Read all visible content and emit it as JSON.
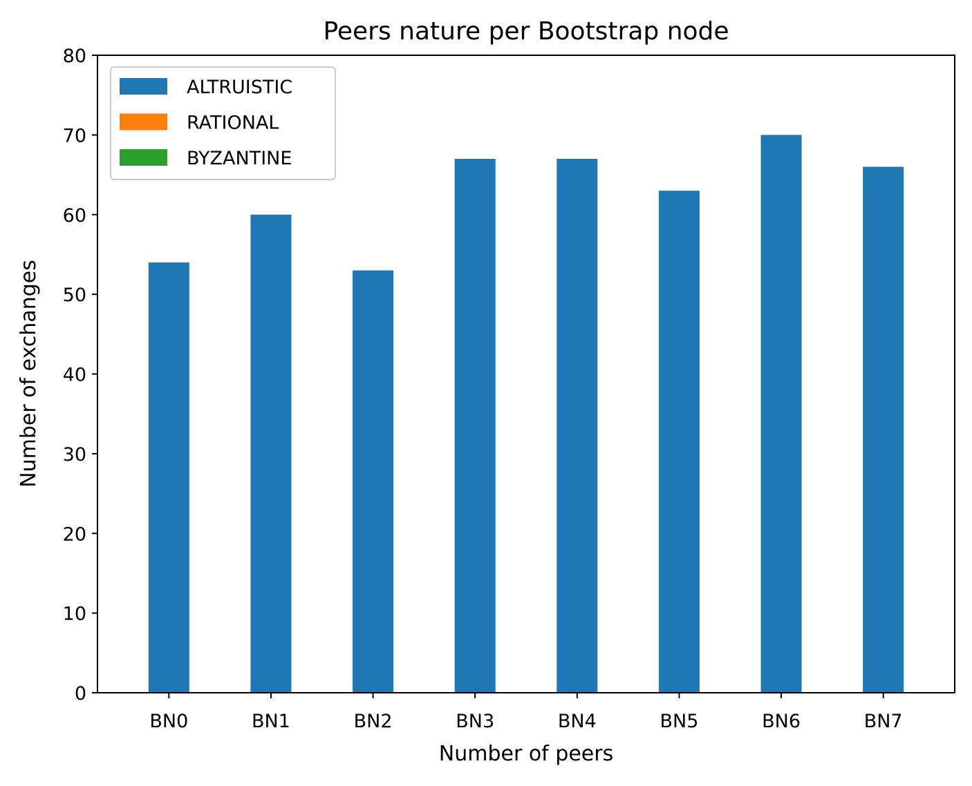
{
  "chart_data": {
    "type": "bar",
    "stacked": true,
    "title": "Peers nature per Bootstrap node",
    "xlabel": "Number of peers",
    "ylabel": "Number of exchanges",
    "categories": [
      "BN0",
      "BN1",
      "BN2",
      "BN3",
      "BN4",
      "BN5",
      "BN6",
      "BN7"
    ],
    "series": [
      {
        "name": "ALTRUISTIC",
        "color": "#1f77b4",
        "values": [
          54,
          60,
          53,
          67,
          67,
          63,
          70,
          66
        ]
      },
      {
        "name": "RATIONAL",
        "color": "#ff7f0e",
        "values": [
          0,
          0,
          0,
          0,
          0,
          0,
          0,
          0
        ]
      },
      {
        "name": "BYZANTINE",
        "color": "#2ca02c",
        "values": [
          0,
          0,
          0,
          0,
          0,
          0,
          0,
          0
        ]
      }
    ],
    "ylim": [
      0,
      80
    ],
    "yticks": [
      "0",
      "10",
      "20",
      "30",
      "40",
      "50",
      "60",
      "70",
      "80"
    ],
    "grid": false,
    "legend_position": "top-left"
  }
}
